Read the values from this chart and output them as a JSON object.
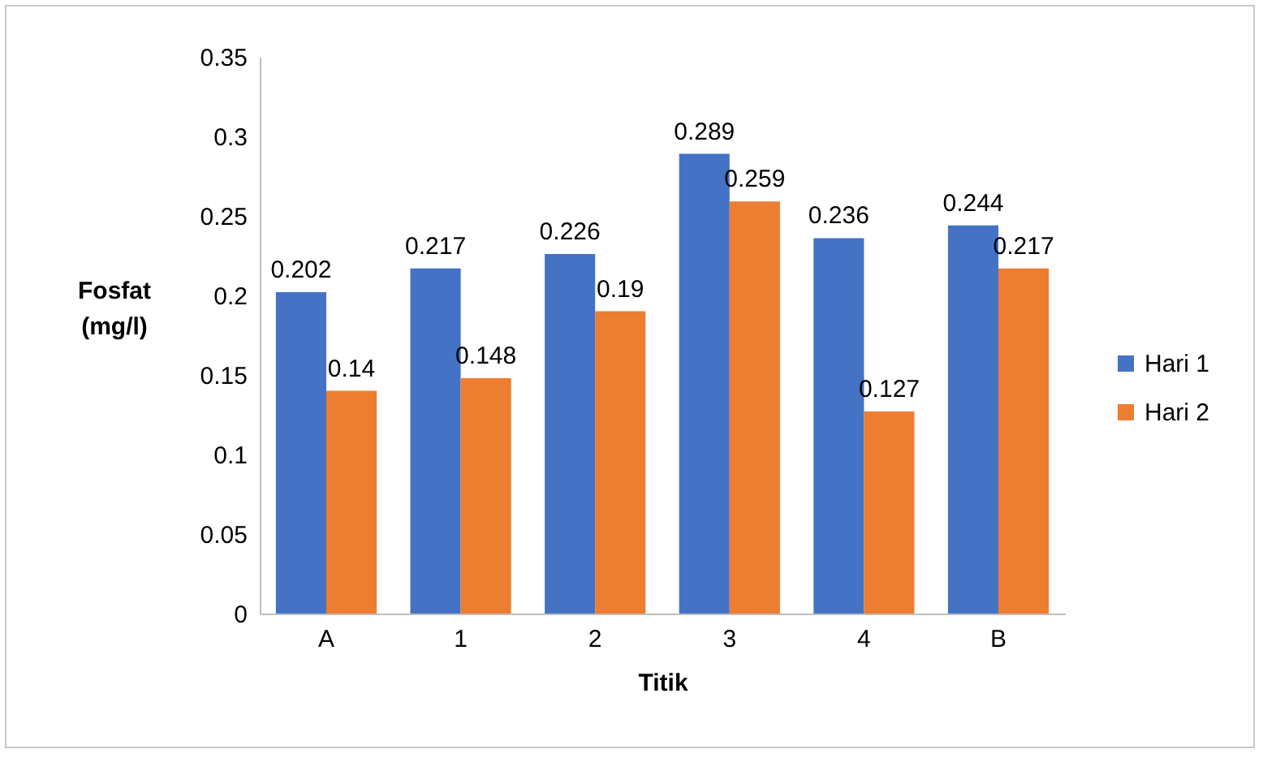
{
  "chart_data": {
    "type": "bar",
    "xlabel": "Titik",
    "ylabel": "Fosfat (mg/l)",
    "categories": [
      "A",
      "1",
      "2",
      "3",
      "4",
      "B"
    ],
    "series": [
      {
        "name": "Hari 1",
        "color": "#4472c4",
        "values": [
          0.202,
          0.217,
          0.226,
          0.289,
          0.236,
          0.244
        ]
      },
      {
        "name": "Hari 2",
        "color": "#ed7d31",
        "values": [
          0.14,
          0.148,
          0.19,
          0.259,
          0.127,
          0.217
        ]
      }
    ],
    "ylim": [
      0,
      0.35
    ],
    "yticks": [
      0,
      0.05,
      0.1,
      0.15,
      0.2,
      0.25,
      0.3,
      0.35
    ],
    "grid": false,
    "legend": "right",
    "data_labels": true
  }
}
